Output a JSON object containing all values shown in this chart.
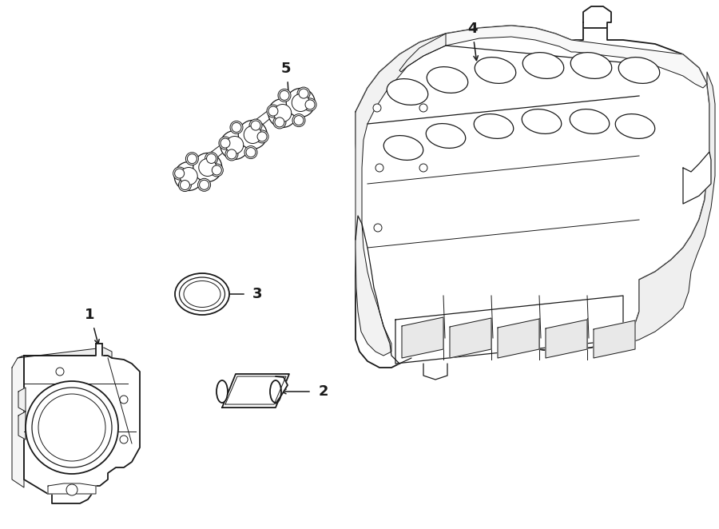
{
  "background_color": "#ffffff",
  "line_color": "#1a1a1a",
  "figsize": [
    9.0,
    6.62
  ],
  "dpi": 100,
  "lw_main": 1.3,
  "lw_med": 0.9,
  "lw_thin": 0.7,
  "label_fontsize": 13
}
